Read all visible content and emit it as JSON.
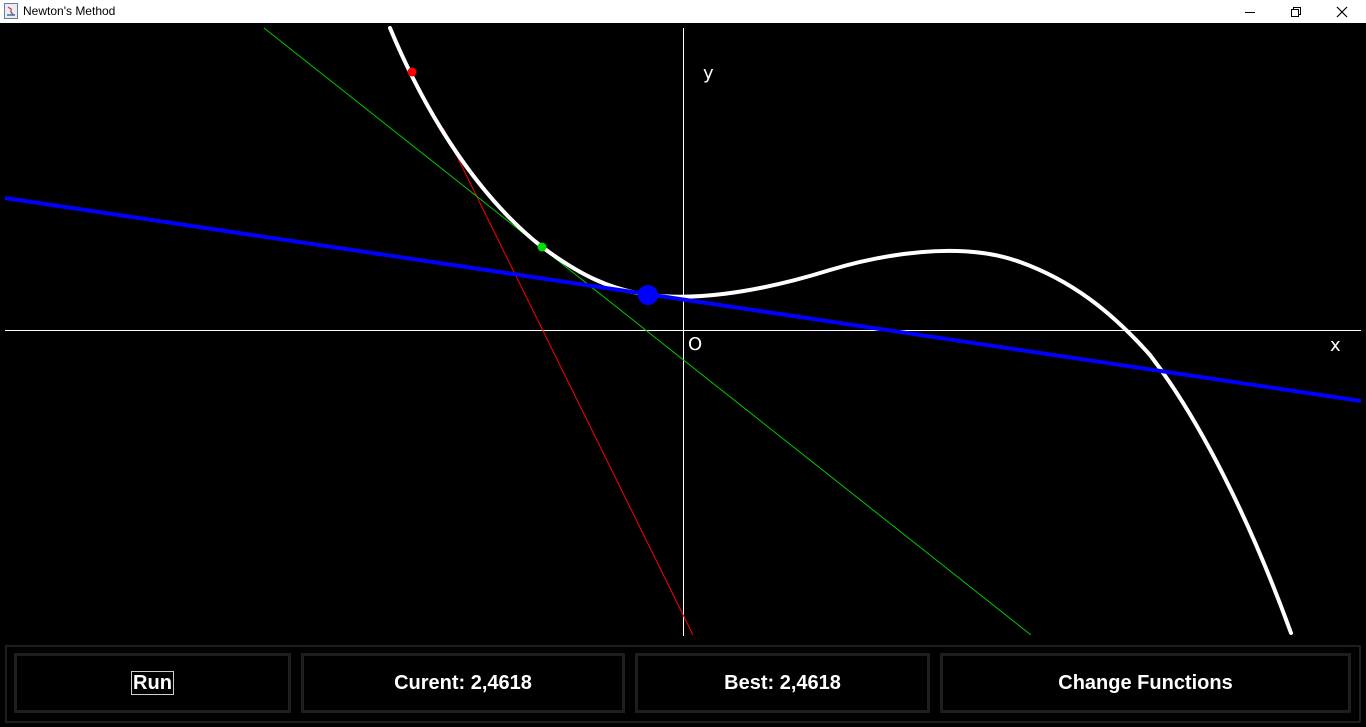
{
  "window": {
    "title": "Newton's Method",
    "app_icon": "java-icon",
    "controls": [
      "minimize-icon",
      "restore-icon",
      "close-icon"
    ]
  },
  "graph": {
    "x_axis_label": "x",
    "y_axis_label": "y",
    "origin_label": "O",
    "background_color": "#000000",
    "curve_color": "#ffffff",
    "current_tangent_color": "#0000ff",
    "previous_tangent_color": "#00c800",
    "first_tangent_color": "#ff0000"
  },
  "controls": {
    "run_label": "Run",
    "current_label": "Curent: 2,4618",
    "best_label": "Best: 2,4618",
    "change_functions_label": "Change Functions"
  }
}
